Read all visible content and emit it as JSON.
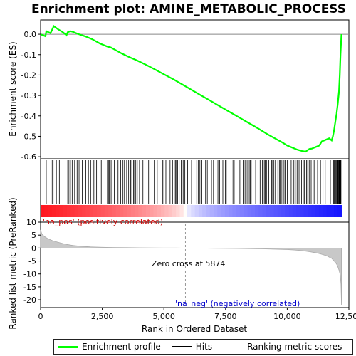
{
  "chart_data": {
    "type": "line",
    "title": "Enrichment plot: AMINE_METABOLIC_PROCESS",
    "xlabel": "Rank in Ordered Dataset",
    "xlim": [
      0,
      12500
    ],
    "x_ticks": [
      0,
      2500,
      5000,
      7500,
      10000,
      12500
    ],
    "x_tick_labels": [
      "0",
      "2,500",
      "5,000",
      "7,500",
      "10,000",
      "12,500"
    ],
    "es_panel": {
      "ylabel": "Enrichment score (ES)",
      "ylim": [
        -0.61,
        0.07
      ],
      "y_ticks": [
        0.0,
        -0.1,
        -0.2,
        -0.3,
        -0.4,
        -0.5,
        -0.6
      ],
      "y_tick_labels": [
        "0.0",
        "-0.1",
        "-0.2",
        "-0.3",
        "-0.4",
        "-0.5",
        "-0.6"
      ],
      "series": [
        {
          "name": "Enrichment profile",
          "color": "#00ff00",
          "x": [
            0,
            200,
            230,
            400,
            500,
            530,
            700,
            900,
            1050,
            1100,
            1200,
            1300,
            1500,
            1800,
            2100,
            2400,
            2700,
            2850,
            3000,
            3300,
            3600,
            3900,
            4200,
            4600,
            5000,
            5400,
            5874,
            6300,
            6800,
            7300,
            7800,
            8300,
            8800,
            9200,
            9500,
            9800,
            10000,
            10200,
            10400,
            10600,
            10750,
            10800,
            10900,
            11000,
            11100,
            11200,
            11300,
            11350,
            11400,
            11500,
            11700,
            11800,
            11850,
            11900,
            11950,
            12000,
            12050,
            12100,
            12130,
            12160,
            12190,
            12200
          ],
          "y": [
            0.0,
            -0.01,
            0.015,
            0.005,
            0.03,
            0.04,
            0.025,
            0.01,
            -0.005,
            0.01,
            0.015,
            0.012,
            0.002,
            -0.01,
            -0.025,
            -0.045,
            -0.06,
            -0.065,
            -0.075,
            -0.095,
            -0.112,
            -0.128,
            -0.145,
            -0.17,
            -0.196,
            -0.222,
            -0.255,
            -0.285,
            -0.32,
            -0.355,
            -0.39,
            -0.425,
            -0.46,
            -0.49,
            -0.51,
            -0.53,
            -0.545,
            -0.555,
            -0.565,
            -0.572,
            -0.575,
            -0.57,
            -0.562,
            -0.56,
            -0.555,
            -0.55,
            -0.545,
            -0.535,
            -0.525,
            -0.52,
            -0.51,
            -0.52,
            -0.5,
            -0.47,
            -0.43,
            -0.39,
            -0.34,
            -0.28,
            -0.2,
            -0.1,
            -0.02,
            0.0
          ]
        }
      ]
    },
    "hits": {
      "name": "Hits",
      "color": "#000000",
      "ranks": [
        230,
        470,
        510,
        640,
        760,
        820,
        1100,
        1150,
        1210,
        1280,
        1380,
        1480,
        1560,
        1690,
        1830,
        1940,
        2030,
        2160,
        2270,
        2460,
        2610,
        2710,
        2750,
        2790,
        2860,
        2990,
        3140,
        3250,
        3340,
        3400,
        3490,
        3570,
        3650,
        3700,
        3770,
        3810,
        3860,
        3920,
        4010,
        4150,
        4380,
        4610,
        4730,
        4930,
        4960,
        5010,
        5080,
        5250,
        5350,
        5410,
        5460,
        5490,
        5560,
        5620,
        5700,
        5780,
        5850,
        5960,
        6120,
        6220,
        6330,
        6390,
        6460,
        6540,
        6690,
        6760,
        6930,
        7010,
        7190,
        7260,
        7390,
        7490,
        7530,
        7800,
        7850,
        8080,
        8210,
        8290,
        8340,
        8400,
        8460,
        8500,
        8540,
        8720,
        8900,
        8990,
        9070,
        9110,
        9160,
        9250,
        9370,
        9410,
        9460,
        9520,
        9620,
        9680,
        9720,
        9760,
        9820,
        9870,
        9920,
        10000,
        10160,
        10230,
        10270,
        10330,
        10400,
        10480,
        10580,
        10650,
        10700,
        10780,
        10830,
        10890,
        10970,
        11090,
        11230,
        11350,
        11450,
        11540,
        11750,
        11850,
        11880,
        11910,
        11940,
        11970,
        12000,
        12020,
        12040,
        12060,
        12080,
        12100,
        12120,
        12140,
        12160,
        12180
      ]
    },
    "ranking_panel": {
      "name": "Ranking metric scores",
      "color": "#aaaaaa",
      "ylabel": "Ranked list metric (PreRanked)",
      "ylim": [
        -23,
        10
      ],
      "y_ticks": [
        10,
        5,
        0,
        -5,
        -10,
        -15,
        -20
      ],
      "y_tick_labels": [
        "10",
        "5",
        "0",
        "-5",
        "-10",
        "-15",
        "-20"
      ],
      "x": [
        0,
        50,
        150,
        300,
        500,
        800,
        1000,
        1300,
        1600,
        2000,
        2500,
        3000,
        3500,
        4000,
        4500,
        5000,
        5500,
        5874,
        6500,
        7000,
        8000,
        9000,
        9500,
        10000,
        10300,
        10600,
        10900,
        11200,
        11400,
        11600,
        11800,
        11900,
        12000,
        12050,
        12100,
        12150,
        12180,
        12200
      ],
      "y": [
        7.0,
        5.5,
        4.5,
        3.6,
        2.8,
        2.0,
        1.5,
        1.0,
        0.7,
        0.45,
        0.3,
        0.2,
        0.15,
        0.1,
        0.06,
        0.03,
        0.01,
        0.0,
        -0.05,
        -0.1,
        -0.18,
        -0.3,
        -0.45,
        -0.6,
        -0.75,
        -1.0,
        -1.4,
        -1.9,
        -2.4,
        -3.0,
        -4.0,
        -5.0,
        -6.2,
        -7.2,
        -8.5,
        -10.5,
        -14.0,
        -22.0
      ]
    },
    "annotations": {
      "pos_label": "'na_pos' (positively correlated)",
      "neg_label": "'na_neg' (negatively correlated)",
      "zero_cross": "Zero cross at 5874",
      "zero_cross_rank": 5874
    },
    "colors": {
      "pos_label": "#cc0000",
      "neg_label": "#0000cc",
      "zero_line": "#999999"
    },
    "legend": {
      "placement": "bottom",
      "items": [
        {
          "label": "Enrichment profile",
          "color": "#00ff00"
        },
        {
          "label": "Hits",
          "color": "#000000"
        },
        {
          "label": "Ranking metric scores",
          "color": "#aaaaaa"
        }
      ]
    }
  }
}
